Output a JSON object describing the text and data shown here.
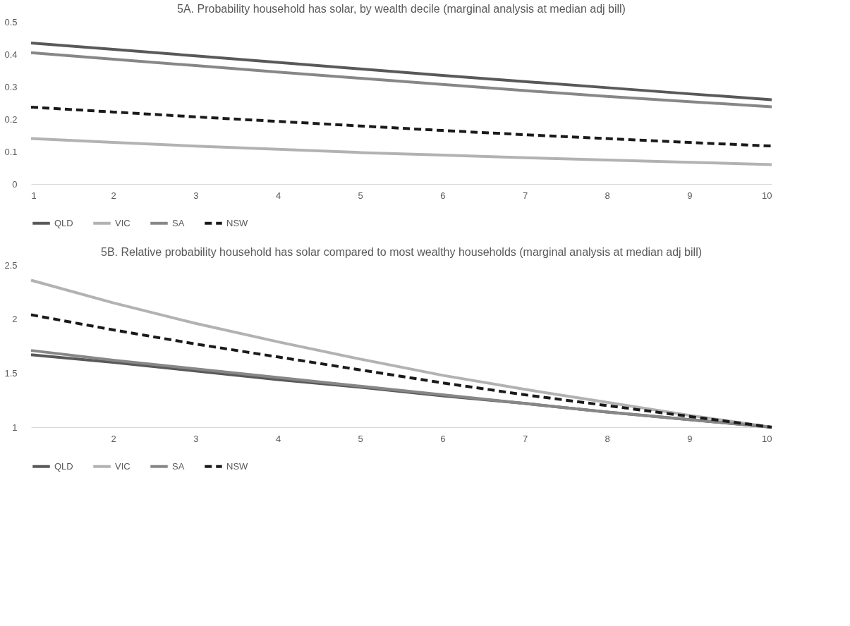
{
  "chart_data": [
    {
      "type": "line",
      "title": "5A. Probability household has solar, by wealth decile (marginal analysis at median adj bill)",
      "x": [
        1,
        2,
        3,
        4,
        5,
        6,
        7,
        8,
        9,
        10
      ],
      "xlim": [
        1,
        10
      ],
      "xticks": [
        1,
        2,
        3,
        4,
        5,
        6,
        7,
        8,
        9,
        10
      ],
      "ylim": [
        0,
        0.5
      ],
      "yticks": [
        0,
        0.1,
        0.2,
        0.3,
        0.4,
        0.5
      ],
      "grid": false,
      "legend": "bottom",
      "series": [
        {
          "name": "QLD",
          "color": "#595959",
          "line_style": "solid",
          "values": [
            0.435,
            0.415,
            0.395,
            0.375,
            0.355,
            0.335,
            0.316,
            0.297,
            0.278,
            0.26
          ]
        },
        {
          "name": "VIC",
          "color": "#b2b2b2",
          "line_style": "solid",
          "values": [
            0.14,
            0.128,
            0.117,
            0.107,
            0.097,
            0.089,
            0.081,
            0.074,
            0.067,
            0.06
          ]
        },
        {
          "name": "SA",
          "color": "#878787",
          "line_style": "solid",
          "values": [
            0.405,
            0.385,
            0.365,
            0.345,
            0.326,
            0.307,
            0.288,
            0.27,
            0.254,
            0.238
          ]
        },
        {
          "name": "NSW",
          "color": "#1a1a1a",
          "line_style": "dashed",
          "values": [
            0.237,
            0.222,
            0.207,
            0.193,
            0.179,
            0.165,
            0.152,
            0.14,
            0.128,
            0.117
          ]
        }
      ]
    },
    {
      "type": "line",
      "title": "5B. Relative probability household has solar compared to most wealthy households (marginal analysis at median adj bill)",
      "x": [
        1,
        2,
        3,
        4,
        5,
        6,
        7,
        8,
        9,
        10
      ],
      "xlim": [
        1,
        10
      ],
      "xticks": [
        2,
        3,
        4,
        5,
        6,
        7,
        8,
        9,
        10
      ],
      "ylim": [
        1,
        2.5
      ],
      "yticks": [
        1,
        1.5,
        2,
        2.5
      ],
      "grid": false,
      "legend": "bottom",
      "series": [
        {
          "name": "QLD",
          "color": "#595959",
          "line_style": "solid",
          "values": [
            1.67,
            1.6,
            1.52,
            1.44,
            1.37,
            1.29,
            1.22,
            1.14,
            1.07,
            1.0
          ]
        },
        {
          "name": "VIC",
          "color": "#b2b2b2",
          "line_style": "solid",
          "values": [
            2.36,
            2.15,
            1.96,
            1.79,
            1.63,
            1.48,
            1.35,
            1.23,
            1.11,
            1.0
          ]
        },
        {
          "name": "SA",
          "color": "#878787",
          "line_style": "solid",
          "values": [
            1.71,
            1.62,
            1.54,
            1.46,
            1.38,
            1.3,
            1.22,
            1.14,
            1.07,
            1.0
          ]
        },
        {
          "name": "NSW",
          "color": "#1a1a1a",
          "line_style": "dashed",
          "values": [
            2.04,
            1.9,
            1.77,
            1.65,
            1.53,
            1.41,
            1.3,
            1.2,
            1.1,
            1.0
          ]
        }
      ]
    }
  ]
}
